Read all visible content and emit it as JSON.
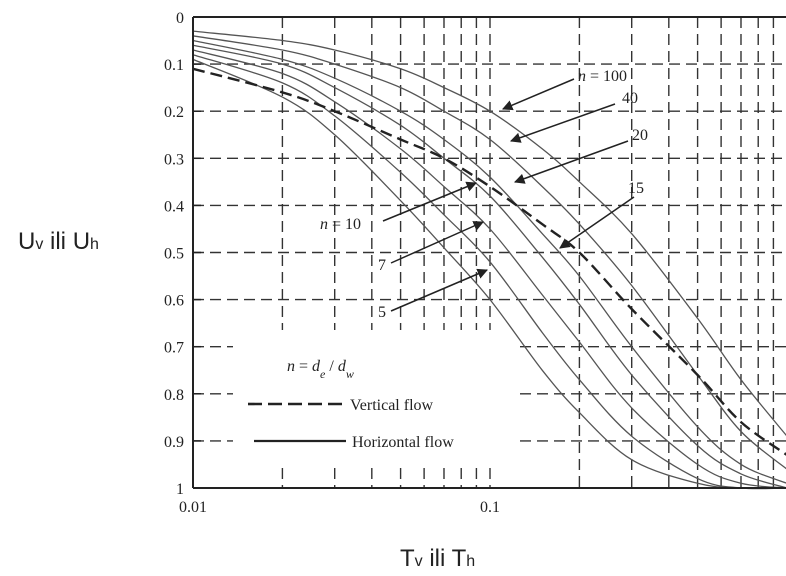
{
  "chart_data": {
    "type": "line",
    "title": "",
    "xlabel": "Tv ili Th",
    "ylabel": "Uv ili Uh",
    "x_scale": "log",
    "xlim": [
      0.01,
      1
    ],
    "ylim": [
      0,
      1
    ],
    "y_inverted": true,
    "grid": true,
    "x_ticks": [
      "0.01",
      "0.1"
    ],
    "y_ticks": [
      "0",
      "0.1",
      "0.2",
      "0.3",
      "0.4",
      "0.5",
      "0.6",
      "0.7",
      "0.8",
      "0.9",
      "1"
    ],
    "series": [
      {
        "name": "n = 100",
        "style": "solid",
        "x": [
          0.01,
          0.02,
          0.03,
          0.05,
          0.07,
          0.1,
          0.15,
          0.2,
          0.3,
          0.5,
          0.7,
          1.0
        ],
        "y": [
          0.03,
          0.05,
          0.07,
          0.11,
          0.15,
          0.2,
          0.28,
          0.35,
          0.46,
          0.64,
          0.77,
          0.89
        ]
      },
      {
        "name": "40",
        "style": "solid",
        "x": [
          0.01,
          0.02,
          0.03,
          0.05,
          0.07,
          0.1,
          0.15,
          0.2,
          0.3,
          0.5,
          0.7,
          1.0
        ],
        "y": [
          0.04,
          0.07,
          0.1,
          0.15,
          0.2,
          0.26,
          0.36,
          0.44,
          0.57,
          0.76,
          0.88,
          0.96
        ]
      },
      {
        "name": "20",
        "style": "solid",
        "x": [
          0.01,
          0.02,
          0.03,
          0.05,
          0.07,
          0.1,
          0.15,
          0.2,
          0.3,
          0.5,
          0.7,
          1.0
        ],
        "y": [
          0.05,
          0.09,
          0.13,
          0.2,
          0.26,
          0.34,
          0.46,
          0.55,
          0.7,
          0.87,
          0.95,
          0.99
        ]
      },
      {
        "name": "15",
        "style": "solid",
        "x": [
          0.01,
          0.02,
          0.03,
          0.05,
          0.07,
          0.1,
          0.15,
          0.2,
          0.3,
          0.5,
          0.7,
          1.0
        ],
        "y": [
          0.06,
          0.1,
          0.15,
          0.23,
          0.3,
          0.38,
          0.51,
          0.61,
          0.76,
          0.91,
          0.97,
          1.0
        ]
      },
      {
        "name": "n = 10",
        "style": "solid",
        "x": [
          0.01,
          0.02,
          0.03,
          0.05,
          0.07,
          0.1,
          0.15,
          0.2,
          0.3,
          0.5,
          0.7,
          1.0
        ],
        "y": [
          0.07,
          0.12,
          0.18,
          0.28,
          0.36,
          0.45,
          0.59,
          0.69,
          0.83,
          0.95,
          0.99,
          1.0
        ]
      },
      {
        "name": "7",
        "style": "solid",
        "x": [
          0.01,
          0.02,
          0.03,
          0.05,
          0.07,
          0.1,
          0.15,
          0.2,
          0.3,
          0.5,
          0.7,
          1.0
        ],
        "y": [
          0.08,
          0.14,
          0.21,
          0.33,
          0.42,
          0.52,
          0.67,
          0.77,
          0.89,
          0.98,
          1.0,
          1.0
        ]
      },
      {
        "name": "5",
        "style": "solid",
        "x": [
          0.01,
          0.02,
          0.03,
          0.05,
          0.07,
          0.1,
          0.15,
          0.2,
          0.3,
          0.5,
          0.7,
          1.0
        ],
        "y": [
          0.09,
          0.17,
          0.25,
          0.39,
          0.49,
          0.6,
          0.75,
          0.84,
          0.94,
          0.99,
          1.0,
          1.0
        ]
      },
      {
        "name": "Vertical flow",
        "style": "dashed",
        "x": [
          0.01,
          0.02,
          0.03,
          0.05,
          0.07,
          0.1,
          0.15,
          0.2,
          0.3,
          0.5,
          0.7,
          1.0
        ],
        "y": [
          0.11,
          0.16,
          0.2,
          0.26,
          0.3,
          0.36,
          0.44,
          0.5,
          0.62,
          0.76,
          0.86,
          0.93
        ]
      }
    ],
    "annotations": [
      "n = 100",
      "40",
      "20",
      "15",
      "n = 10",
      "7",
      "5"
    ],
    "legend": {
      "formula": "n = d_e / d_w",
      "entries": [
        {
          "label": "Vertical flow",
          "style": "dashed"
        },
        {
          "label": "Horizontal flow",
          "style": "solid"
        }
      ],
      "placement": "bottom-left"
    }
  }
}
